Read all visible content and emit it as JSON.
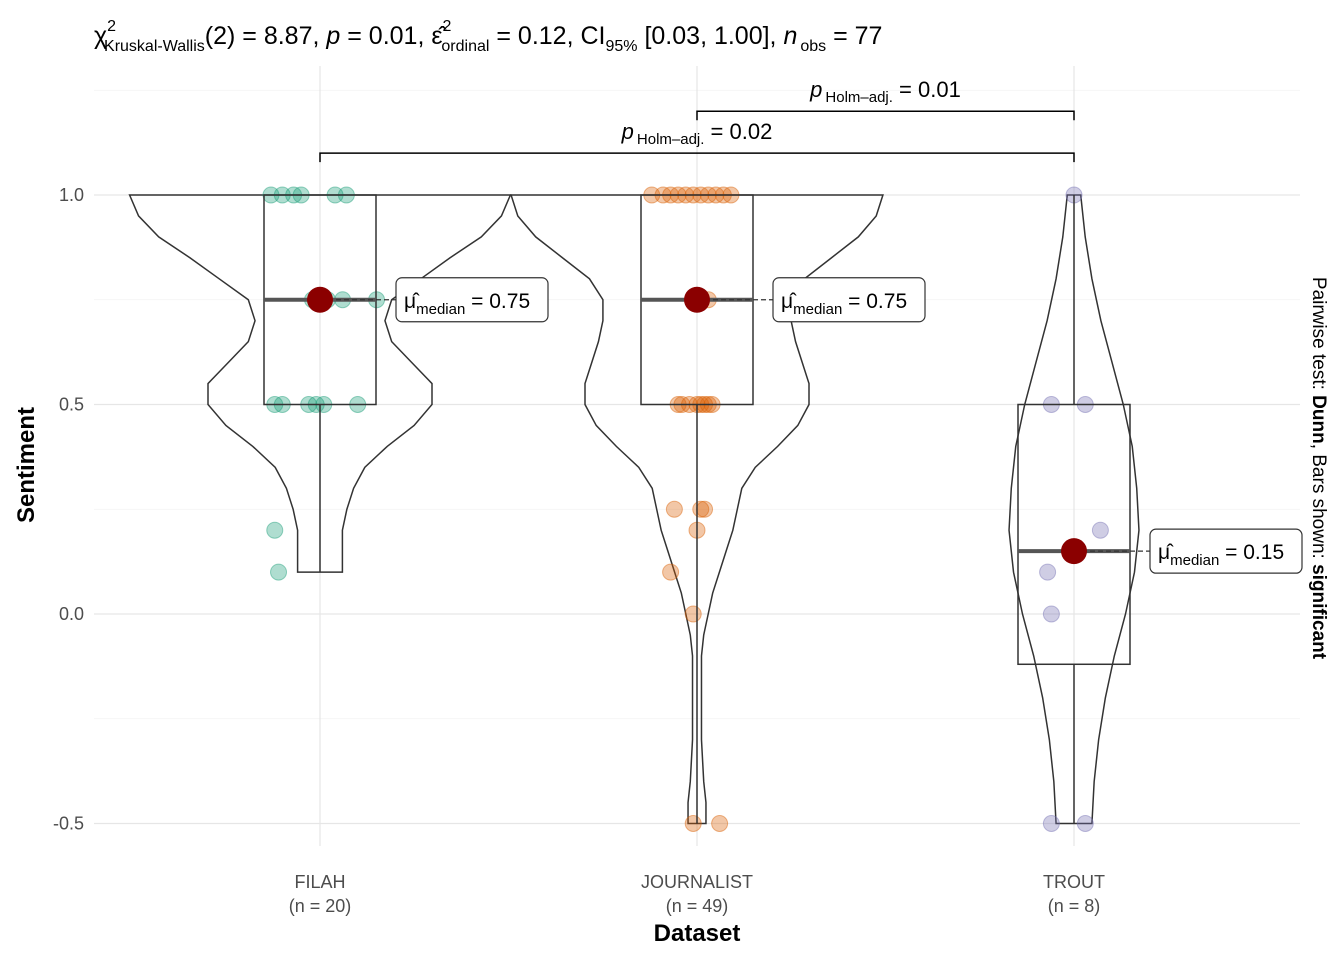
{
  "chart_data": {
    "type": "violin-box",
    "title": {
      "prefix": "χ",
      "sup": "2",
      "test_sub": "Kruskal-Wallis",
      "rest1": "(2) = 8.87, ",
      "p": "p",
      "rest2": " = 0.01, ",
      "eps": "ε̂",
      "eps_sub": "ordinal",
      "rest3": " = 0.12, CI",
      "ci_sub": "95%",
      "rest4": " [0.03, 1.00], ",
      "n": "n",
      "n_sub": "obs",
      "rest5": " = 77"
    },
    "xlabel": "Dataset",
    "ylabel": "Sentiment",
    "ylim": [
      -0.58,
      1.27
    ],
    "y_ticks": [
      {
        "value": -0.5,
        "label": "-0.5"
      },
      {
        "value": 0.0,
        "label": "0.0"
      },
      {
        "value": 0.5,
        "label": "0.5"
      },
      {
        "value": 1.0,
        "label": "1.0"
      }
    ],
    "grid": true,
    "categories": [
      {
        "name": "FILAH",
        "n_label": "(n = 20)",
        "color": "#1B9E77",
        "box": {
          "q1": 0.5,
          "median": 0.75,
          "q3": 1.0,
          "lower": 0.1,
          "upper": 1.0
        },
        "violin": [
          [
            1.0,
            0.85
          ],
          [
            0.95,
            0.81
          ],
          [
            0.9,
            0.72
          ],
          [
            0.85,
            0.58
          ],
          [
            0.8,
            0.45
          ],
          [
            0.75,
            0.32
          ],
          [
            0.7,
            0.29
          ],
          [
            0.65,
            0.32
          ],
          [
            0.6,
            0.41
          ],
          [
            0.55,
            0.5
          ],
          [
            0.5,
            0.5
          ],
          [
            0.45,
            0.42
          ],
          [
            0.4,
            0.3
          ],
          [
            0.35,
            0.2
          ],
          [
            0.3,
            0.15
          ],
          [
            0.25,
            0.12
          ],
          [
            0.2,
            0.1
          ],
          [
            0.15,
            0.1
          ],
          [
            0.1,
            0.1
          ]
        ],
        "points": [
          {
            "x": -0.13,
            "y": 1.0
          },
          {
            "x": -0.1,
            "y": 1.0
          },
          {
            "x": -0.07,
            "y": 1.0
          },
          {
            "x": -0.05,
            "y": 1.0
          },
          {
            "x": 0.04,
            "y": 1.0
          },
          {
            "x": 0.07,
            "y": 1.0
          },
          {
            "x": -0.02,
            "y": 0.75
          },
          {
            "x": 0.02,
            "y": 0.75
          },
          {
            "x": 0.06,
            "y": 0.75
          },
          {
            "x": 0.15,
            "y": 0.75
          },
          {
            "x": -0.12,
            "y": 0.5
          },
          {
            "x": -0.1,
            "y": 0.5
          },
          {
            "x": -0.03,
            "y": 0.5
          },
          {
            "x": -0.01,
            "y": 0.5
          },
          {
            "x": 0.01,
            "y": 0.5
          },
          {
            "x": 0.1,
            "y": 0.5
          },
          {
            "x": -0.12,
            "y": 0.2
          },
          {
            "x": -0.11,
            "y": 0.1
          }
        ],
        "median_label": {
          "mu": "μ̂",
          "sub": "median",
          "value": " = 0.75"
        }
      },
      {
        "name": "JOURNALIST",
        "n_label": "(n = 49)",
        "color": "#D95F02",
        "box": {
          "q1": 0.5,
          "median": 0.75,
          "q3": 1.0,
          "lower": -0.5,
          "upper": 1.0
        },
        "violin": [
          [
            1.0,
            0.83
          ],
          [
            0.95,
            0.8
          ],
          [
            0.9,
            0.72
          ],
          [
            0.85,
            0.6
          ],
          [
            0.8,
            0.48
          ],
          [
            0.75,
            0.42
          ],
          [
            0.7,
            0.42
          ],
          [
            0.65,
            0.44
          ],
          [
            0.6,
            0.47
          ],
          [
            0.55,
            0.5
          ],
          [
            0.5,
            0.5
          ],
          [
            0.45,
            0.45
          ],
          [
            0.4,
            0.36
          ],
          [
            0.35,
            0.26
          ],
          [
            0.3,
            0.2
          ],
          [
            0.25,
            0.18
          ],
          [
            0.2,
            0.16
          ],
          [
            0.15,
            0.13
          ],
          [
            0.1,
            0.1
          ],
          [
            0.05,
            0.07
          ],
          [
            0.0,
            0.05
          ],
          [
            -0.05,
            0.03
          ],
          [
            -0.1,
            0.02
          ],
          [
            -0.2,
            0.02
          ],
          [
            -0.3,
            0.02
          ],
          [
            -0.4,
            0.03
          ],
          [
            -0.45,
            0.04
          ],
          [
            -0.5,
            0.04
          ]
        ],
        "points": [
          {
            "x": -0.12,
            "y": 1.0
          },
          {
            "x": -0.09,
            "y": 1.0
          },
          {
            "x": -0.07,
            "y": 1.0
          },
          {
            "x": -0.05,
            "y": 1.0
          },
          {
            "x": -0.03,
            "y": 1.0
          },
          {
            "x": -0.01,
            "y": 1.0
          },
          {
            "x": 0.01,
            "y": 1.0
          },
          {
            "x": 0.03,
            "y": 1.0
          },
          {
            "x": 0.05,
            "y": 1.0
          },
          {
            "x": 0.07,
            "y": 1.0
          },
          {
            "x": 0.09,
            "y": 1.0
          },
          {
            "x": 0.0,
            "y": 0.75
          },
          {
            "x": 0.03,
            "y": 0.75
          },
          {
            "x": -0.05,
            "y": 0.5
          },
          {
            "x": -0.04,
            "y": 0.5
          },
          {
            "x": -0.02,
            "y": 0.5
          },
          {
            "x": 0.0,
            "y": 0.5
          },
          {
            "x": 0.01,
            "y": 0.5
          },
          {
            "x": 0.02,
            "y": 0.5
          },
          {
            "x": 0.03,
            "y": 0.5
          },
          {
            "x": 0.04,
            "y": 0.5
          },
          {
            "x": -0.06,
            "y": 0.25
          },
          {
            "x": 0.01,
            "y": 0.25
          },
          {
            "x": 0.02,
            "y": 0.25
          },
          {
            "x": 0.0,
            "y": 0.2
          },
          {
            "x": -0.07,
            "y": 0.1
          },
          {
            "x": -0.01,
            "y": 0.0
          },
          {
            "x": -0.01,
            "y": -0.5
          },
          {
            "x": 0.06,
            "y": -0.5
          }
        ],
        "median_label": {
          "mu": "μ̂",
          "sub": "median",
          "value": " = 0.75"
        }
      },
      {
        "name": "TROUT",
        "n_label": "(n = 8)",
        "color": "#7570B3",
        "box": {
          "q1": -0.12,
          "median": 0.15,
          "q3": 0.5,
          "lower": -0.5,
          "upper": 1.0
        },
        "violin": [
          [
            1.0,
            0.03
          ],
          [
            0.9,
            0.05
          ],
          [
            0.8,
            0.08
          ],
          [
            0.7,
            0.12
          ],
          [
            0.6,
            0.17
          ],
          [
            0.5,
            0.22
          ],
          [
            0.4,
            0.26
          ],
          [
            0.3,
            0.28
          ],
          [
            0.2,
            0.29
          ],
          [
            0.1,
            0.27
          ],
          [
            0.0,
            0.23
          ],
          [
            -0.1,
            0.18
          ],
          [
            -0.2,
            0.14
          ],
          [
            -0.3,
            0.11
          ],
          [
            -0.4,
            0.09
          ],
          [
            -0.5,
            0.08
          ]
        ],
        "points": [
          {
            "x": -0.06,
            "y": 0.5
          },
          {
            "x": 0.03,
            "y": 0.5
          },
          {
            "x": 0.07,
            "y": 0.2
          },
          {
            "x": -0.07,
            "y": 0.1
          },
          {
            "x": -0.06,
            "y": 0.0
          },
          {
            "x": 0.0,
            "y": 1.0
          },
          {
            "x": -0.06,
            "y": -0.5
          },
          {
            "x": 0.03,
            "y": -0.5
          }
        ],
        "median_label": {
          "mu": "μ̂",
          "sub": "median",
          "value": " = 0.15"
        }
      }
    ],
    "median_point_color": "#8B0000",
    "brackets": [
      {
        "from": 1,
        "to": 2,
        "y": 1.2,
        "p": "p",
        "sub": "Holm–adj.",
        "value": " = 0.01"
      },
      {
        "from": 0,
        "to": 2,
        "y": 1.1,
        "p": "p",
        "sub": "Holm–adj.",
        "value": " = 0.02"
      }
    ],
    "caption": {
      "prefix": "Pairwise test: ",
      "test": "Dunn",
      "mid": ", Bars shown: ",
      "shown": "significant"
    }
  }
}
